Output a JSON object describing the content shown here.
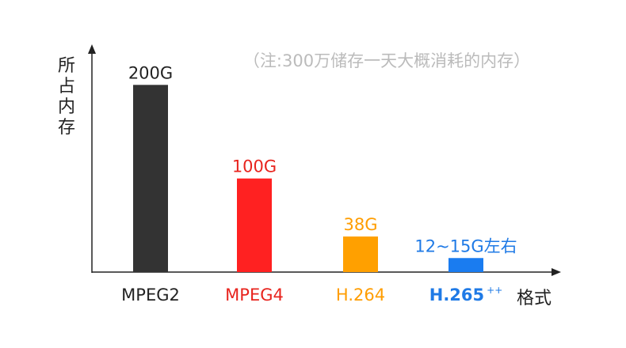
{
  "chart_data": {
    "type": "bar",
    "title": "",
    "note": "（注:300万储存一天大概消耗的内存）",
    "ylabel": "所占内存",
    "xlabel": "格式",
    "categories": [
      "MPEG2",
      "MPEG4",
      "H.264",
      "H.265"
    ],
    "category_suffix": [
      "",
      "",
      "",
      "++"
    ],
    "values": [
      200,
      100,
      38,
      15
    ],
    "value_labels": [
      "200G",
      "100G",
      "38G",
      "12~15G左右"
    ],
    "colors": [
      "#333333",
      "#ff2121",
      "#ffa000",
      "#1a7cf0"
    ],
    "label_colors": [
      "#222222",
      "#e8241e",
      "#ff9d00",
      "#1f7ae6"
    ],
    "ylim": [
      0,
      240
    ],
    "grid": false,
    "legend": "none"
  }
}
